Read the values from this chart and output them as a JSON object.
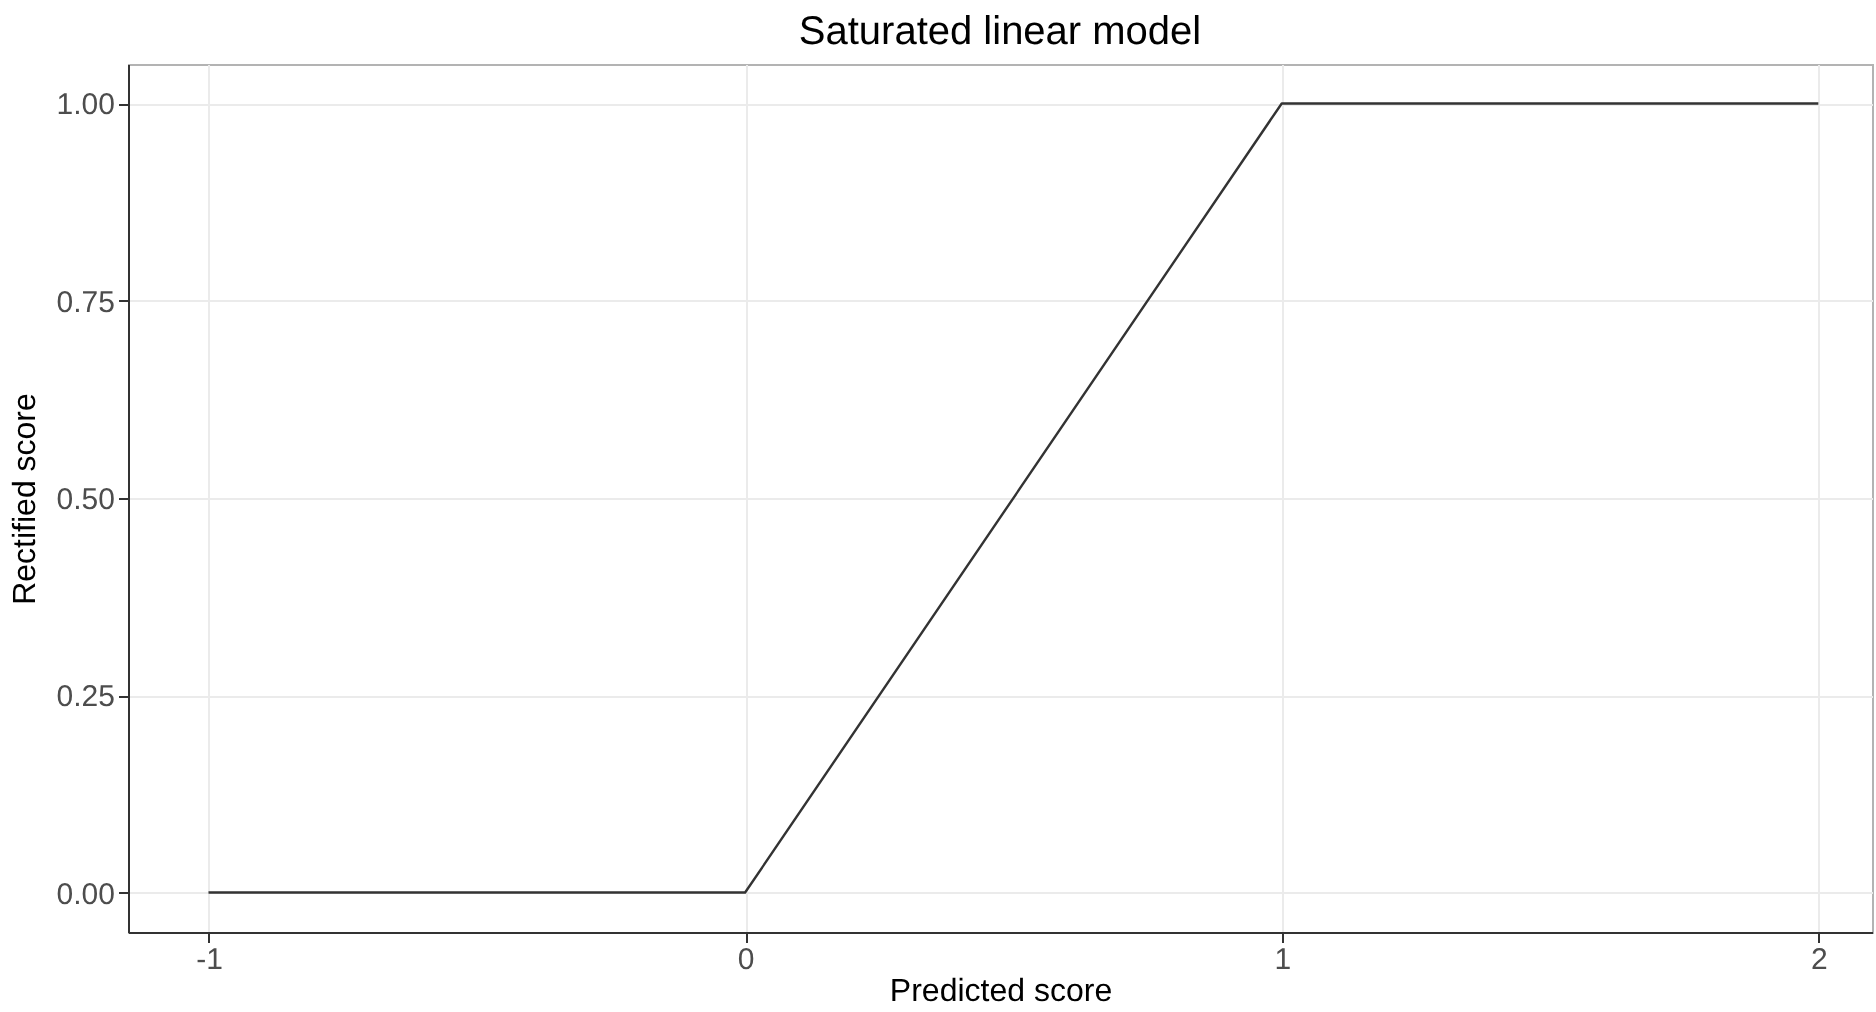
{
  "chart_data": {
    "type": "line",
    "title": "Saturated linear model",
    "xlabel": "Predicted score",
    "ylabel": "Rectified score",
    "x": [
      -1,
      0,
      1,
      2
    ],
    "series": [
      {
        "color": "#333333",
        "values": [
          0,
          0,
          1,
          1
        ]
      }
    ],
    "xlim": [
      -1.15,
      2.1
    ],
    "xticks": [
      {
        "value": -1,
        "label": "-1"
      },
      {
        "value": 0,
        "label": "0"
      },
      {
        "value": 1,
        "label": "1"
      },
      {
        "value": 2,
        "label": "2"
      }
    ],
    "ylim": [
      -0.05,
      1.05
    ],
    "yticks": [
      {
        "value": 0,
        "label": "0.00"
      },
      {
        "value": 0.25,
        "label": "0.25"
      },
      {
        "value": 0.5,
        "label": "0.50"
      },
      {
        "value": 0.75,
        "label": "0.75"
      },
      {
        "value": 1,
        "label": "1.00"
      }
    ],
    "grid": true,
    "marker": "none",
    "line_style": "solid"
  }
}
